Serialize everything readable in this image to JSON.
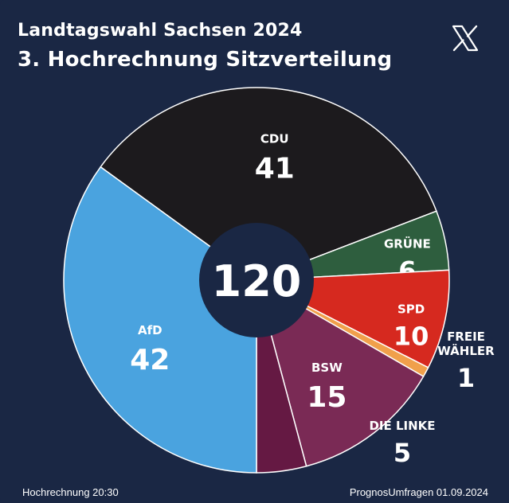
{
  "header": {
    "line1": "Landtagswahl Sachsen 2024",
    "line2": "3. Hochrechnung Sitzverteilung",
    "brand_icon": "x-logo-icon"
  },
  "footer": {
    "left": "Hochrechnung 20:30",
    "right": "PrognosUmfragen 01.09.2024"
  },
  "chart_data": {
    "type": "pie",
    "title": "3. Hochrechnung Sitzverteilung",
    "center_label": "120",
    "slices": [
      {
        "name": "CDU",
        "value": 41,
        "color": "#1c1a1d"
      },
      {
        "name": "GRÜNE",
        "value": 6,
        "color": "#2e5e3e"
      },
      {
        "name": "SPD",
        "value": 10,
        "color": "#d6291f"
      },
      {
        "name": "FREIE WÄHLER",
        "value": 1,
        "color": "#f0a04b"
      },
      {
        "name": "BSW",
        "value": 15,
        "color": "#7a2a55"
      },
      {
        "name": "DIE LINKE",
        "value": 5,
        "color": "#651943"
      },
      {
        "name": "AfD",
        "value": 42,
        "color": "#4aa3df"
      }
    ],
    "colors": {
      "background": "#1a2744",
      "center": "#1a2744"
    }
  }
}
